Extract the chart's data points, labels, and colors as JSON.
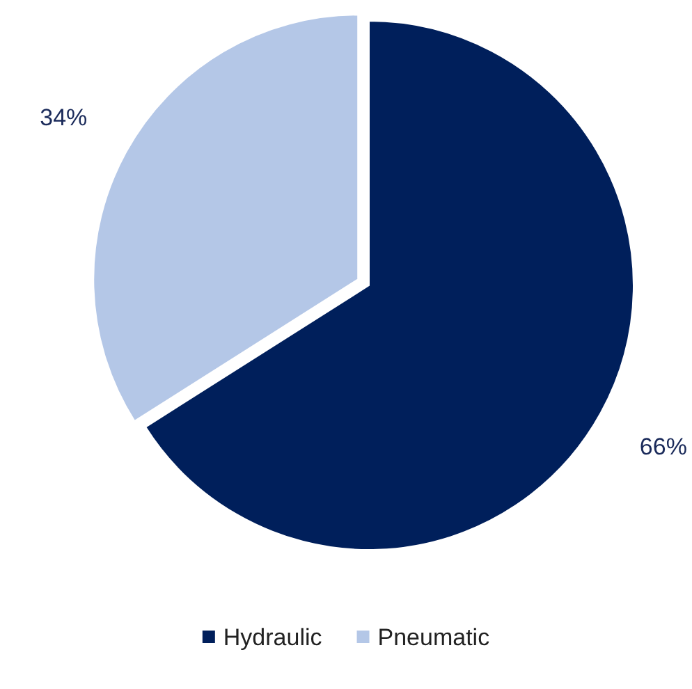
{
  "chart_data": {
    "type": "pie",
    "categories": [
      "Hydraulic",
      "Pneumatic"
    ],
    "values": [
      66,
      34
    ],
    "colors": [
      "#001f5b",
      "#b4c7e7"
    ],
    "value_labels": [
      "66%",
      "34%"
    ],
    "legend": "bottom"
  }
}
